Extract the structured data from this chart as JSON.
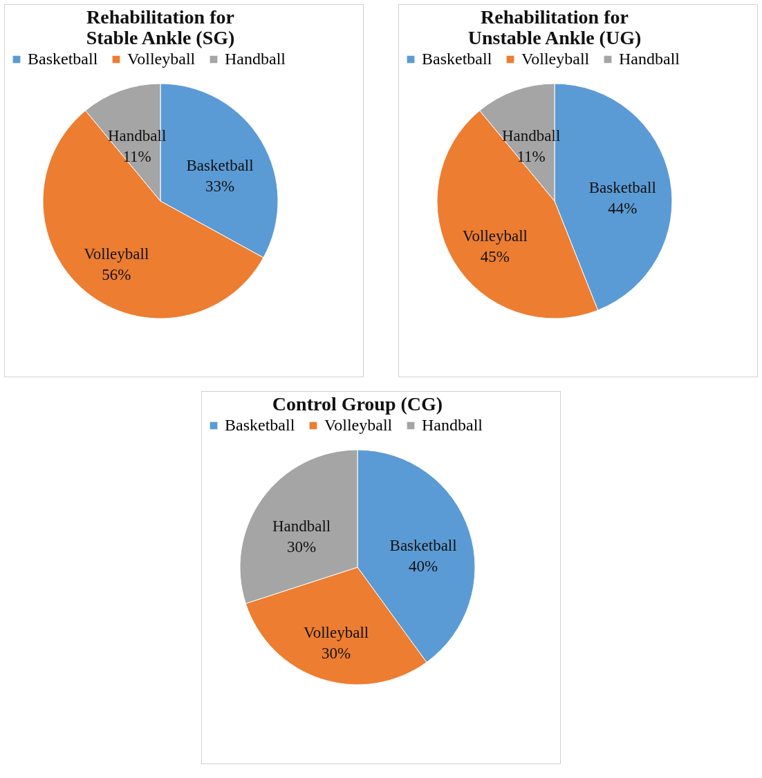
{
  "chart_data": [
    {
      "type": "pie",
      "title": "Rehabilitation for Stable Ankle (SG)",
      "categories": [
        "Basketball",
        "Volleyball",
        "Handball"
      ],
      "values": [
        33,
        56,
        11
      ],
      "value_labels": [
        "33%",
        "56%",
        "11%"
      ],
      "colors": [
        "#5b9bd5",
        "#ed7d31",
        "#a5a5a5"
      ],
      "legend": "top"
    },
    {
      "type": "pie",
      "title": "Rehabilitation for Unstable Ankle (UG)",
      "categories": [
        "Basketball",
        "Volleyball",
        "Handball"
      ],
      "values": [
        44,
        45,
        11
      ],
      "value_labels": [
        "44%",
        "45%",
        "11%"
      ],
      "colors": [
        "#5b9bd5",
        "#ed7d31",
        "#a5a5a5"
      ],
      "legend": "top"
    },
    {
      "type": "pie",
      "title": "Control Group (CG)",
      "categories": [
        "Basketball",
        "Volleyball",
        "Handball"
      ],
      "values": [
        40,
        30,
        30
      ],
      "value_labels": [
        "40%",
        "30%",
        "30%"
      ],
      "colors": [
        "#5b9bd5",
        "#ed7d31",
        "#a5a5a5"
      ],
      "legend": "top"
    }
  ]
}
